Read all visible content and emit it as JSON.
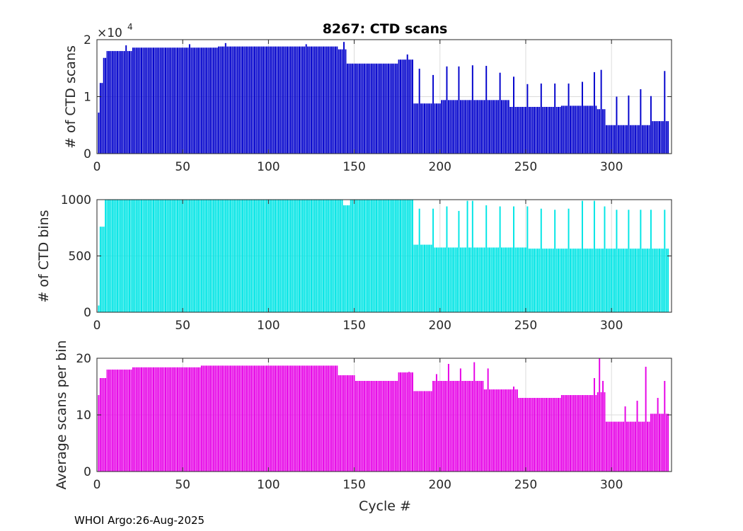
{
  "chart_data": [
    {
      "type": "bar",
      "title": "8267: CTD scans",
      "ylabel": "# of CTD scans",
      "xlabel": "",
      "xlim": [
        0,
        335
      ],
      "ylim": [
        0,
        20000
      ],
      "xticks": [
        0,
        50,
        100,
        150,
        200,
        250,
        300
      ],
      "yticks": [
        0,
        10000,
        20000
      ],
      "ytick_labels": [
        "0",
        "1",
        "2"
      ],
      "multiplier": {
        "base": "×10",
        "exponent": "4"
      },
      "color": "#0000cc",
      "grid": true,
      "segments": [
        {
          "from": 1,
          "to": 1,
          "value": 7200
        },
        {
          "from": 2,
          "to": 3,
          "value": 12400
        },
        {
          "from": 4,
          "to": 5,
          "value": 16800
        },
        {
          "from": 6,
          "to": 20,
          "value": 18000
        },
        {
          "from": 21,
          "to": 70,
          "value": 18600
        },
        {
          "from": 71,
          "to": 140,
          "value": 18800
        },
        {
          "from": 141,
          "to": 145,
          "value": 18300
        },
        {
          "from": 146,
          "to": 175,
          "value": 15800
        },
        {
          "from": 176,
          "to": 184,
          "value": 16500
        },
        {
          "from": 185,
          "to": 200,
          "value": 8800
        },
        {
          "from": 201,
          "to": 240,
          "value": 9400
        },
        {
          "from": 241,
          "to": 270,
          "value": 8200
        },
        {
          "from": 271,
          "to": 291,
          "value": 8400
        },
        {
          "from": 292,
          "to": 296,
          "value": 7800
        },
        {
          "from": 297,
          "to": 322,
          "value": 5000
        },
        {
          "from": 323,
          "to": 333,
          "value": 5700
        }
      ],
      "spikes": [
        {
          "x": 17,
          "value": 19000
        },
        {
          "x": 54,
          "value": 19200
        },
        {
          "x": 75,
          "value": 19400
        },
        {
          "x": 122,
          "value": 19200
        },
        {
          "x": 144,
          "value": 19600
        },
        {
          "x": 181,
          "value": 17400
        },
        {
          "x": 188,
          "value": 14900
        },
        {
          "x": 196,
          "value": 13800
        },
        {
          "x": 204,
          "value": 15300
        },
        {
          "x": 211,
          "value": 15300
        },
        {
          "x": 219,
          "value": 15500
        },
        {
          "x": 227,
          "value": 15400
        },
        {
          "x": 235,
          "value": 14200
        },
        {
          "x": 243,
          "value": 13500
        },
        {
          "x": 251,
          "value": 12200
        },
        {
          "x": 259,
          "value": 12300
        },
        {
          "x": 267,
          "value": 12300
        },
        {
          "x": 275,
          "value": 12300
        },
        {
          "x": 283,
          "value": 12600
        },
        {
          "x": 290,
          "value": 14300
        },
        {
          "x": 294,
          "value": 14700
        },
        {
          "x": 303,
          "value": 10000
        },
        {
          "x": 310,
          "value": 10200
        },
        {
          "x": 317,
          "value": 11300
        },
        {
          "x": 323,
          "value": 10100
        },
        {
          "x": 331,
          "value": 14500
        }
      ]
    },
    {
      "type": "bar",
      "title": "",
      "ylabel": "# of CTD bins",
      "xlabel": "",
      "xlim": [
        0,
        335
      ],
      "ylim": [
        0,
        1000
      ],
      "xticks": [
        0,
        50,
        100,
        150,
        200,
        250,
        300
      ],
      "yticks": [
        0,
        500,
        1000
      ],
      "ytick_labels": [
        "0",
        "500",
        "1000"
      ],
      "color": "#00e5e5",
      "grid": true,
      "segments": [
        {
          "from": 1,
          "to": 1,
          "value": 60
        },
        {
          "from": 2,
          "to": 4,
          "value": 760
        },
        {
          "from": 5,
          "to": 143,
          "value": 1000
        },
        {
          "from": 144,
          "to": 147,
          "value": 950
        },
        {
          "from": 148,
          "to": 184,
          "value": 1000
        },
        {
          "from": 185,
          "to": 195,
          "value": 600
        },
        {
          "from": 196,
          "to": 250,
          "value": 575
        },
        {
          "from": 251,
          "to": 333,
          "value": 565
        }
      ],
      "spikes": [
        {
          "x": 188,
          "value": 920
        },
        {
          "x": 196,
          "value": 920
        },
        {
          "x": 204,
          "value": 940
        },
        {
          "x": 211,
          "value": 900
        },
        {
          "x": 216,
          "value": 990
        },
        {
          "x": 219,
          "value": 990
        },
        {
          "x": 227,
          "value": 950
        },
        {
          "x": 235,
          "value": 940
        },
        {
          "x": 243,
          "value": 940
        },
        {
          "x": 251,
          "value": 940
        },
        {
          "x": 259,
          "value": 920
        },
        {
          "x": 267,
          "value": 910
        },
        {
          "x": 275,
          "value": 920
        },
        {
          "x": 283,
          "value": 990
        },
        {
          "x": 290,
          "value": 990
        },
        {
          "x": 296,
          "value": 940
        },
        {
          "x": 303,
          "value": 910
        },
        {
          "x": 310,
          "value": 910
        },
        {
          "x": 317,
          "value": 910
        },
        {
          "x": 323,
          "value": 910
        },
        {
          "x": 331,
          "value": 910
        }
      ]
    },
    {
      "type": "bar",
      "title": "",
      "ylabel": "Average scans per bin",
      "xlabel": "Cycle #",
      "xlim": [
        0,
        335
      ],
      "ylim": [
        0,
        20
      ],
      "xticks": [
        0,
        50,
        100,
        150,
        200,
        250,
        300
      ],
      "yticks": [
        0,
        10,
        20
      ],
      "ytick_labels": [
        "0",
        "10",
        "20"
      ],
      "color": "#e600e6",
      "grid": true,
      "segments": [
        {
          "from": 1,
          "to": 1,
          "value": 13.5
        },
        {
          "from": 2,
          "to": 5,
          "value": 16.5
        },
        {
          "from": 6,
          "to": 20,
          "value": 18.0
        },
        {
          "from": 21,
          "to": 60,
          "value": 18.4
        },
        {
          "from": 61,
          "to": 140,
          "value": 18.7
        },
        {
          "from": 141,
          "to": 150,
          "value": 17.0
        },
        {
          "from": 151,
          "to": 175,
          "value": 16.0
        },
        {
          "from": 176,
          "to": 184,
          "value": 17.5
        },
        {
          "from": 185,
          "to": 195,
          "value": 14.2
        },
        {
          "from": 196,
          "to": 225,
          "value": 16.0
        },
        {
          "from": 226,
          "to": 245,
          "value": 14.5
        },
        {
          "from": 246,
          "to": 270,
          "value": 13.0
        },
        {
          "from": 271,
          "to": 291,
          "value": 13.5
        },
        {
          "from": 292,
          "to": 296,
          "value": 14.0
        },
        {
          "from": 297,
          "to": 322,
          "value": 8.8
        },
        {
          "from": 323,
          "to": 333,
          "value": 10.2
        }
      ],
      "spikes": [
        {
          "x": 182,
          "value": 17.6
        },
        {
          "x": 198,
          "value": 17.2
        },
        {
          "x": 205,
          "value": 19.0
        },
        {
          "x": 212,
          "value": 18.2
        },
        {
          "x": 220,
          "value": 19.3
        },
        {
          "x": 228,
          "value": 18.2
        },
        {
          "x": 243,
          "value": 15.0
        },
        {
          "x": 290,
          "value": 16.5
        },
        {
          "x": 293,
          "value": 21.0
        },
        {
          "x": 295,
          "value": 16.0
        },
        {
          "x": 308,
          "value": 11.5
        },
        {
          "x": 315,
          "value": 12.5
        },
        {
          "x": 320,
          "value": 18.5
        },
        {
          "x": 327,
          "value": 13.0
        },
        {
          "x": 331,
          "value": 16.0
        }
      ]
    }
  ],
  "footer": "WHOI Argo:26-Aug-2025"
}
